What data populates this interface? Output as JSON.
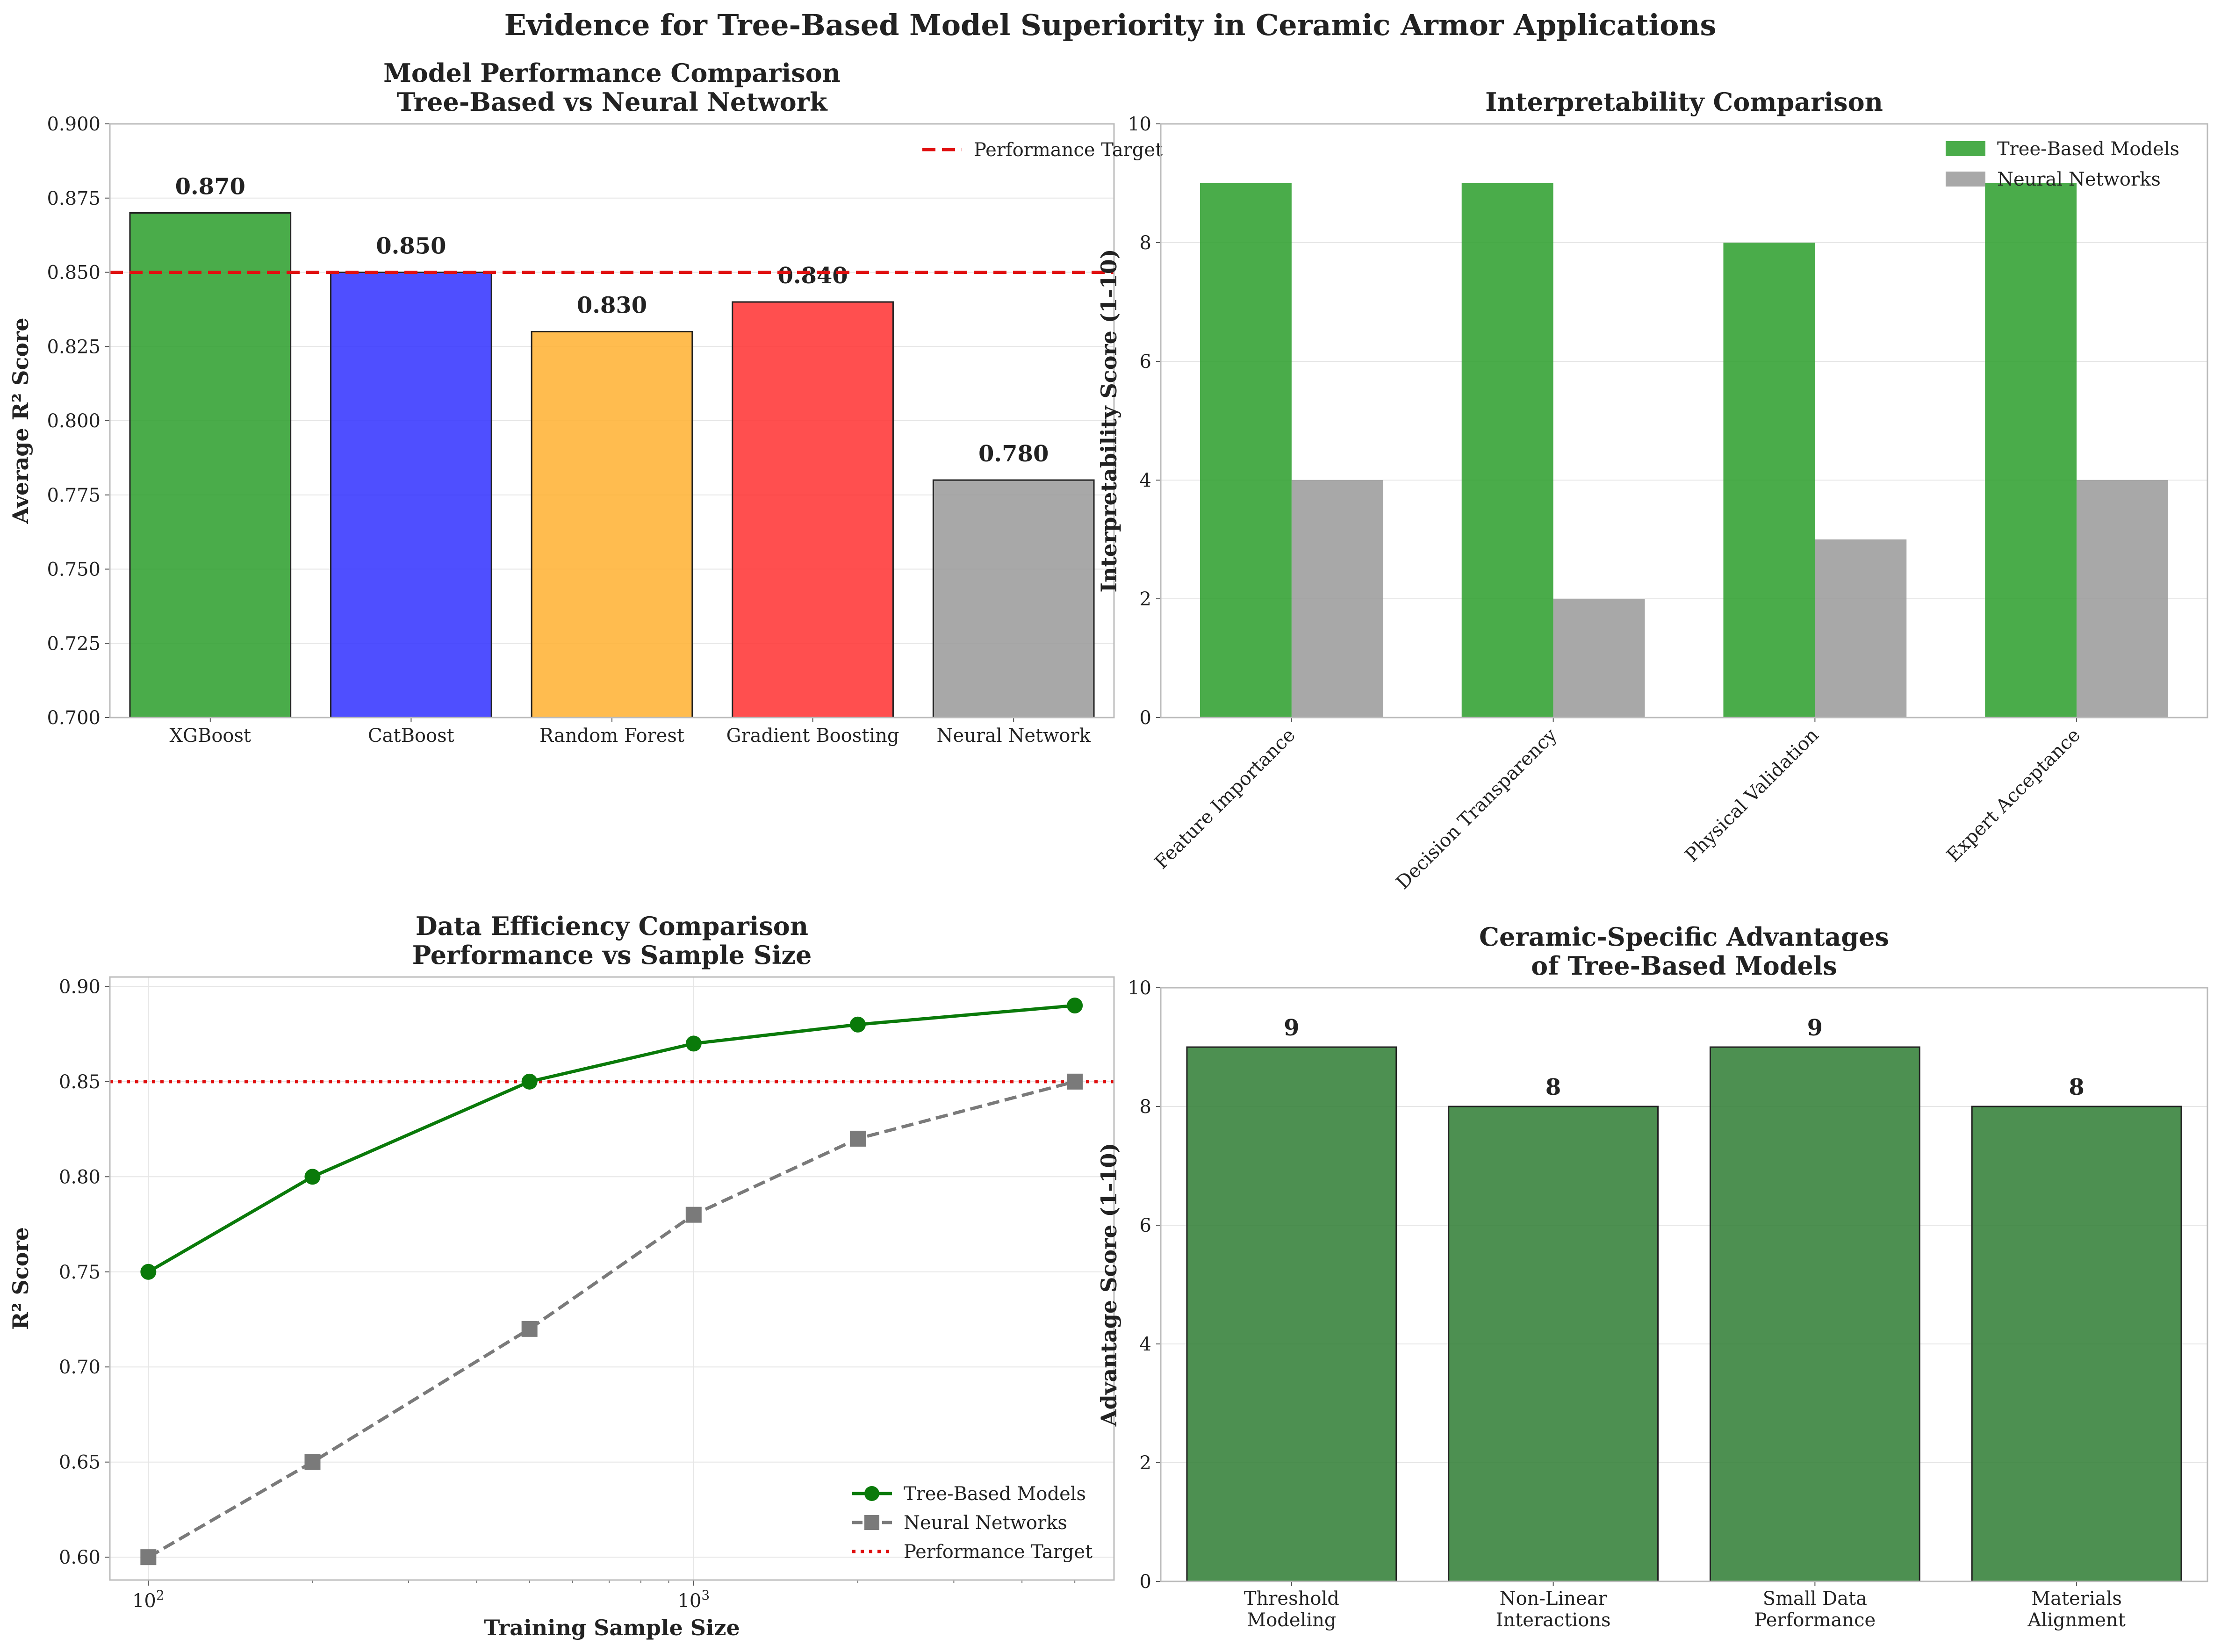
{
  "figure": {
    "title": "Evidence for Tree-Based Model Superiority in Ceramic Armor Applications"
  },
  "colors": {
    "green": "#2a9d2a",
    "dark_green": "#2e7d32",
    "blue": "#3030ff",
    "orange": "#ffb030",
    "red": "#ff3030",
    "gray": "#999999",
    "target_red": "#e01010",
    "line_green": "#0a7a0a",
    "line_gray": "#7a7a7a"
  },
  "chart_data": [
    {
      "id": "performance",
      "type": "bar",
      "title": "Model Performance Comparison\nTree-Based vs Neural Network",
      "xlabel": "",
      "ylabel": "Average R² Score",
      "categories": [
        "XGBoost",
        "CatBoost",
        "Random Forest",
        "Gradient Boosting",
        "Neural Network"
      ],
      "values": [
        0.87,
        0.85,
        0.83,
        0.84,
        0.78
      ],
      "value_labels": [
        "0.870",
        "0.850",
        "0.830",
        "0.840",
        "0.780"
      ],
      "bar_colors": [
        "#2a9d2a",
        "#3030ff",
        "#ffb030",
        "#ff3030",
        "#999999"
      ],
      "ylim": [
        0.7,
        0.9
      ],
      "yticks": [
        0.7,
        0.725,
        0.75,
        0.775,
        0.8,
        0.825,
        0.85,
        0.875,
        0.9
      ],
      "ytick_labels": [
        "0.700",
        "0.725",
        "0.750",
        "0.775",
        "0.800",
        "0.825",
        "0.850",
        "0.875",
        "0.900"
      ],
      "target": {
        "value": 0.85,
        "label": "Performance Target"
      },
      "grid": true,
      "legend": "top-right"
    },
    {
      "id": "interpretability",
      "type": "bar",
      "title": "Interpretability Comparison",
      "xlabel": "",
      "ylabel": "Interpretability Score (1-10)",
      "categories": [
        "Feature Importance",
        "Decision Transparency",
        "Physical Validation",
        "Expert Acceptance"
      ],
      "series": [
        {
          "name": "Tree-Based Models",
          "values": [
            9,
            9,
            8,
            9
          ],
          "color": "#2a9d2a"
        },
        {
          "name": "Neural Networks",
          "values": [
            4,
            2,
            3,
            4
          ],
          "color": "#999999"
        }
      ],
      "ylim": [
        0,
        10
      ],
      "yticks": [
        0,
        2,
        4,
        6,
        8,
        10
      ],
      "ytick_labels": [
        "0",
        "2",
        "4",
        "6",
        "8",
        "10"
      ],
      "grid": true,
      "legend": "top-right"
    },
    {
      "id": "efficiency",
      "type": "line",
      "title": "Data Efficiency Comparison\nPerformance vs Sample Size",
      "xlabel": "Training Sample Size",
      "ylabel": "R² Score",
      "x": [
        100,
        200,
        500,
        1000,
        2000,
        5000
      ],
      "xscale": "log",
      "xlim": [
        85,
        5900
      ],
      "xticks": [
        100,
        1000
      ],
      "xtick_labels": [
        {
          "base": "10",
          "exp": "2"
        },
        {
          "base": "10",
          "exp": "3"
        }
      ],
      "series": [
        {
          "name": "Tree-Based Models",
          "values": [
            0.75,
            0.8,
            0.85,
            0.87,
            0.88,
            0.89
          ],
          "color": "#0a7a0a",
          "marker": "circle",
          "dash": "solid"
        },
        {
          "name": "Neural Networks",
          "values": [
            0.6,
            0.65,
            0.72,
            0.78,
            0.82,
            0.85
          ],
          "color": "#7a7a7a",
          "marker": "square",
          "dash": "dashed"
        }
      ],
      "ylim": [
        0.588,
        0.905
      ],
      "yticks": [
        0.6,
        0.65,
        0.7,
        0.75,
        0.8,
        0.85,
        0.9
      ],
      "ytick_labels": [
        "0.60",
        "0.65",
        "0.70",
        "0.75",
        "0.80",
        "0.85",
        "0.90"
      ],
      "target": {
        "value": 0.85,
        "label": "Performance Target"
      },
      "grid": true,
      "legend": "bottom-right"
    },
    {
      "id": "advantages",
      "type": "bar",
      "title": "Ceramic-Specific Advantages\nof Tree-Based Models",
      "xlabel": "",
      "ylabel": "Advantage Score (1-10)",
      "categories": [
        "Threshold\nModeling",
        "Non-Linear\nInteractions",
        "Small Data\nPerformance",
        "Materials\nAlignment"
      ],
      "values": [
        9,
        8,
        9,
        8
      ],
      "value_labels": [
        "9",
        "8",
        "9",
        "8"
      ],
      "bar_color": "#2e7d32",
      "ylim": [
        0,
        10
      ],
      "yticks": [
        0,
        2,
        4,
        6,
        8,
        10
      ],
      "ytick_labels": [
        "0",
        "2",
        "4",
        "6",
        "8",
        "10"
      ],
      "grid": true
    }
  ]
}
